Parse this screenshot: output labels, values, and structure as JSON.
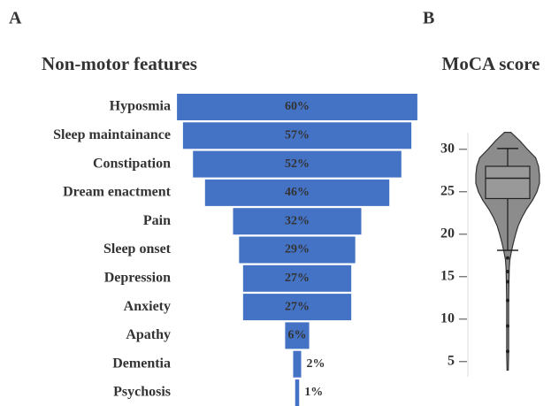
{
  "chart_data": [
    {
      "type": "bar",
      "panel": "A",
      "title": "Non-motor features",
      "categories": [
        "Hyposmia",
        "Sleep maintainance",
        "Constipation",
        "Dream enactment",
        "Pain",
        "Sleep onset",
        "Depression",
        "Anxiety",
        "Apathy",
        "Dementia",
        "Psychosis"
      ],
      "values": [
        60,
        57,
        52,
        46,
        32,
        29,
        27,
        27,
        6,
        2,
        1
      ],
      "value_labels": [
        "60%",
        "57%",
        "52%",
        "46%",
        "32%",
        "29%",
        "27%",
        "27%",
        "6%",
        "2%",
        "1%"
      ],
      "color": "#4472c4"
    },
    {
      "type": "violin",
      "panel": "B",
      "title": "MoCA score",
      "ylim": [
        3,
        33
      ],
      "yticks": [
        5,
        10,
        15,
        20,
        25,
        30
      ],
      "color": "#8c8c8c",
      "violin": {
        "y": [
          4,
          6,
          8,
          10,
          12,
          14,
          16,
          17,
          18,
          19,
          20,
          21,
          22,
          23,
          24,
          25,
          26,
          27,
          28,
          29,
          30,
          31,
          32
        ],
        "density": [
          0.02,
          0.03,
          0.03,
          0.03,
          0.03,
          0.04,
          0.05,
          0.07,
          0.12,
          0.18,
          0.25,
          0.33,
          0.45,
          0.6,
          0.78,
          0.92,
          1.0,
          1.0,
          0.97,
          0.88,
          0.62,
          0.38,
          0.1
        ]
      },
      "box": {
        "whisker_low": 18.1,
        "q1": 24.2,
        "median": 26.6,
        "q3": 28.0,
        "whisker_high": 30.1
      },
      "outliers": [
        17.2,
        15.6,
        14.4,
        12.2,
        9.2,
        6.2
      ]
    }
  ]
}
